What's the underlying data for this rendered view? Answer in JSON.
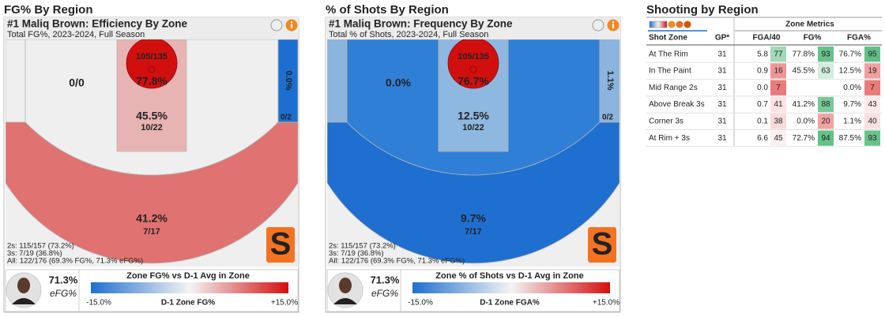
{
  "panels": [
    {
      "heading": "FG% By Region",
      "card_title": "#1 Maliq Brown: Efficiency By Zone",
      "card_subtitle": "Total FG%, 2023-2024, Full Season",
      "zones": {
        "mid_range": {
          "labels": [
            "0/0"
          ],
          "color": "#efefef"
        },
        "corner_left": {
          "color": "#efefef"
        },
        "corner_right": {
          "labels": [
            "0.0%",
            "0/2"
          ],
          "color": "#1c6fd1"
        },
        "above_break": {
          "labels": [
            "41.2%",
            "7/17"
          ],
          "color": "#e07272"
        },
        "paint": {
          "labels": [
            "45.5%",
            "10/22"
          ],
          "color": "#e8b3b3"
        },
        "rim": {
          "labels": [
            "105/135",
            "77.8%"
          ],
          "color": "#d20f0f"
        }
      },
      "summary": [
        "2s: 115/157 (73.2%)",
        "3s: 7/19 (36.8%)",
        "All: 122/176 (69.3% FG%, 71.3% eFG%)"
      ],
      "logo": "S",
      "efg": "71.3%",
      "efg_label": "eFG%",
      "legend": {
        "title": "Zone FG% vs D-1 Avg in Zone",
        "min": "-15.0%",
        "axis": "D-1 Zone FG%",
        "max": "+15.0%"
      }
    },
    {
      "heading": "% of Shots By Region",
      "card_title": "#1 Maliq Brown: Frequency By Zone",
      "card_subtitle": "Total % of Shots, 2023-2024, Full Season",
      "zones": {
        "mid_range": {
          "labels": [
            "0.0%"
          ],
          "color": "#2f7fd6"
        },
        "corner_left": {
          "color": "#8bb4df"
        },
        "corner_right": {
          "labels": [
            "1.1%",
            "0/2"
          ],
          "color": "#8bb4df"
        },
        "above_break": {
          "labels": [
            "9.7%",
            "7/17"
          ],
          "color": "#1f6fd0"
        },
        "paint": {
          "labels": [
            "12.5%",
            "10/22"
          ],
          "color": "#8fb8e1"
        },
        "rim": {
          "labels": [
            "105/135",
            "76.7%"
          ],
          "color": "#d20f0f"
        }
      },
      "summary": [
        "2s: 115/157 (73.2%)",
        "3s: 7/19 (36.8%)",
        "All: 122/176 (69.3% FG%, 71.3% eFG%)"
      ],
      "logo": "S",
      "efg": "71.3%",
      "efg_label": "eFG%",
      "legend": {
        "title": "Zone % of Shots vs D-1 Avg in Zone",
        "min": "-15.0%",
        "axis": "D-1 Zone FGA%",
        "max": "+15.0%"
      }
    }
  ],
  "table": {
    "title": "Shooting by Region",
    "group_header": "Zone Metrics",
    "columns": [
      "Shot Zone",
      "GP*",
      "FGA/40",
      "FG%",
      "FGA%"
    ],
    "rows": [
      {
        "zone": "At The Rim",
        "gp": 31,
        "fga40": "5.8",
        "fga40_pct": 77,
        "fg": "77.8%",
        "fg_pct": 93,
        "fga": "76.7%",
        "fga_pct": 95
      },
      {
        "zone": "In The Paint",
        "gp": 31,
        "fga40": "0.9",
        "fga40_pct": 16,
        "fg": "45.5%",
        "fg_pct": 63,
        "fga": "12.5%",
        "fga_pct": 19
      },
      {
        "zone": "Mid Range 2s",
        "gp": 31,
        "fga40": "0.0",
        "fga40_pct": 7,
        "fg": null,
        "fg_pct": null,
        "fga": "0.0%",
        "fga_pct": 7
      },
      {
        "zone": "Above Break 3s",
        "gp": 31,
        "fga40": "0.7",
        "fga40_pct": 41,
        "fg": "41.2%",
        "fg_pct": 88,
        "fga": "9.7%",
        "fga_pct": 43
      },
      {
        "zone": "Corner 3s",
        "gp": 31,
        "fga40": "0.1",
        "fga40_pct": 38,
        "fg": "0.0%",
        "fg_pct": 20,
        "fga": "1.1%",
        "fga_pct": 40
      },
      {
        "zone": "At Rim + 3s",
        "gp": 31,
        "fga40": "6.6",
        "fga40_pct": 45,
        "fg": "72.7%",
        "fg_pct": 94,
        "fga": "87.5%",
        "fga_pct": 93
      }
    ]
  }
}
